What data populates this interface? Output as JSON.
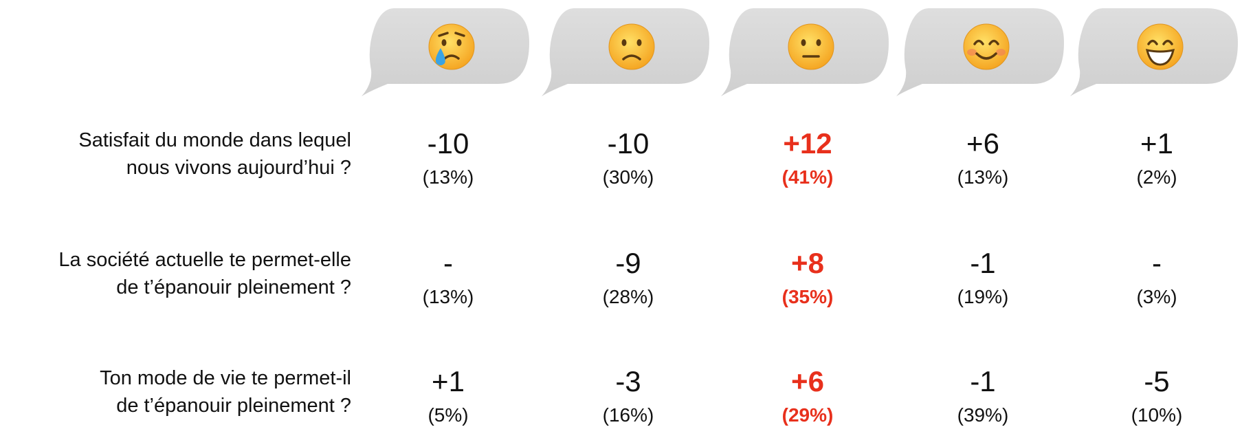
{
  "table": {
    "highlight": {
      "column": 2,
      "color": "#e8301c"
    },
    "rows": [
      {
        "question": [
          "Satisfait du monde dans lequel",
          "nous vivons aujourd’hui ?"
        ],
        "cells": [
          {
            "change": "-10",
            "share": "(13%)"
          },
          {
            "change": "-10",
            "share": "(30%)"
          },
          {
            "change": "+12",
            "share": "(41%)"
          },
          {
            "change": "+6",
            "share": "(13%)"
          },
          {
            "change": "+1",
            "share": "(2%)"
          }
        ]
      },
      {
        "question": [
          "La société actuelle te permet-elle",
          "de t’épanouir pleinement ?"
        ],
        "cells": [
          {
            "change": "-",
            "share": "(13%)"
          },
          {
            "change": "-9",
            "share": "(28%)"
          },
          {
            "change": "+8",
            "share": "(35%)"
          },
          {
            "change": "-1",
            "share": "(19%)"
          },
          {
            "change": "-",
            "share": "(3%)"
          }
        ]
      },
      {
        "question": [
          "Ton mode de vie te permet-il",
          "de t’épanouir pleinement ?"
        ],
        "cells": [
          {
            "change": "+1",
            "share": "(5%)"
          },
          {
            "change": "-3",
            "share": "(16%)"
          },
          {
            "change": "+6",
            "share": "(29%)"
          },
          {
            "change": "-1",
            "share": "(39%)"
          },
          {
            "change": "-5",
            "share": "(10%)"
          }
        ]
      }
    ]
  }
}
